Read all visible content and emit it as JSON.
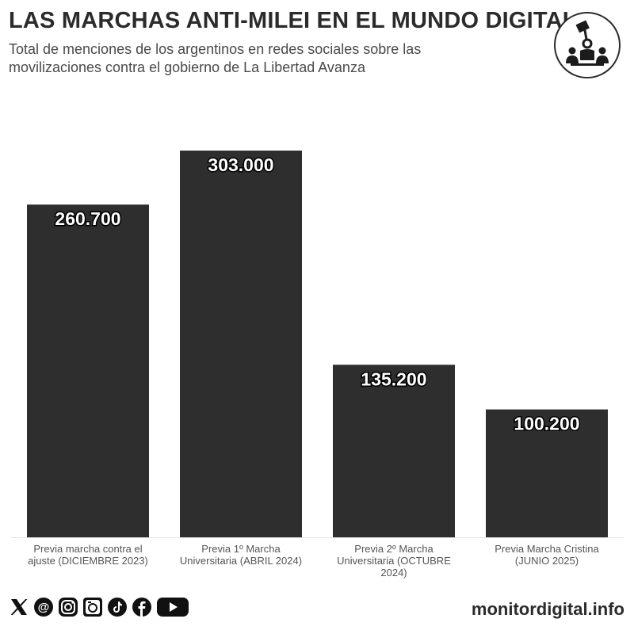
{
  "header": {
    "title": "LAS MARCHAS ANTI-MILEI EN EL MUNDO DIGITAL",
    "subtitle": "Total de menciones de los argentinos en redes sociales sobre las movilizaciones contra el gobierno de La Libertad Avanza"
  },
  "colors": {
    "bar": "#2e2e2e",
    "label_text": "#ffffff",
    "axis_text": "#555555"
  },
  "chart_data": {
    "type": "bar",
    "title": "LAS MARCHAS ANTI-MILEI EN EL MUNDO DIGITAL",
    "subtitle": "Total de menciones de los argentinos en redes sociales sobre las movilizaciones contra el gobierno de La Libertad Avanza",
    "categories": [
      [
        "Previa marcha contra el",
        "ajuste (DICIEMBRE 2023)"
      ],
      [
        "Previa 1º Marcha",
        "Universitaria (ABRIL 2024)"
      ],
      [
        "Previa 2º Marcha",
        "Universitaria (OCTUBRE",
        "2024)"
      ],
      [
        "Previa Marcha Cristina",
        "(JUNIO 2025)"
      ]
    ],
    "values": [
      260700,
      303000,
      135200,
      100200
    ],
    "data_labels": [
      "260.700",
      "303.000",
      "135.200",
      "100.200"
    ],
    "xlabel": "",
    "ylabel": "",
    "ylim": [
      0,
      303000
    ],
    "grid": false,
    "legend": "none"
  },
  "footer": {
    "social_icons": [
      "x-icon",
      "threads-icon",
      "instagram-icon",
      "camera-icon",
      "tiktok-icon",
      "facebook-icon",
      "youtube-icon"
    ],
    "site": "monitordigital.info"
  }
}
